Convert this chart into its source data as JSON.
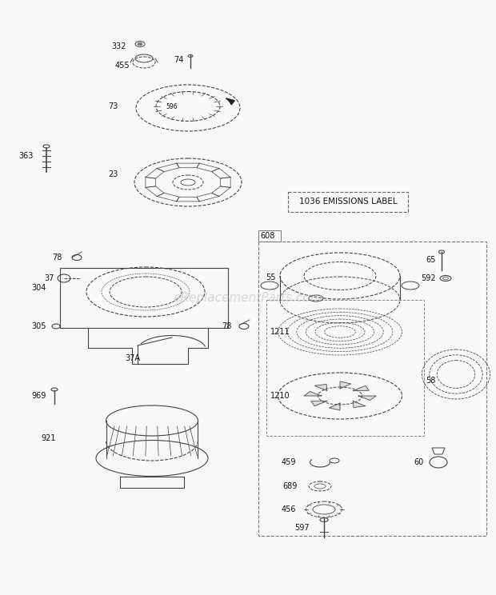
{
  "bg_color": "#f8f8f8",
  "line_color": "#444444",
  "text_color": "#111111",
  "watermark": "eReplacementParts.com",
  "watermark_color": "#bbbbbb",
  "emissions_label": "1036 EMISSIONS LABEL",
  "fig_w": 6.2,
  "fig_h": 7.44,
  "dpi": 100
}
